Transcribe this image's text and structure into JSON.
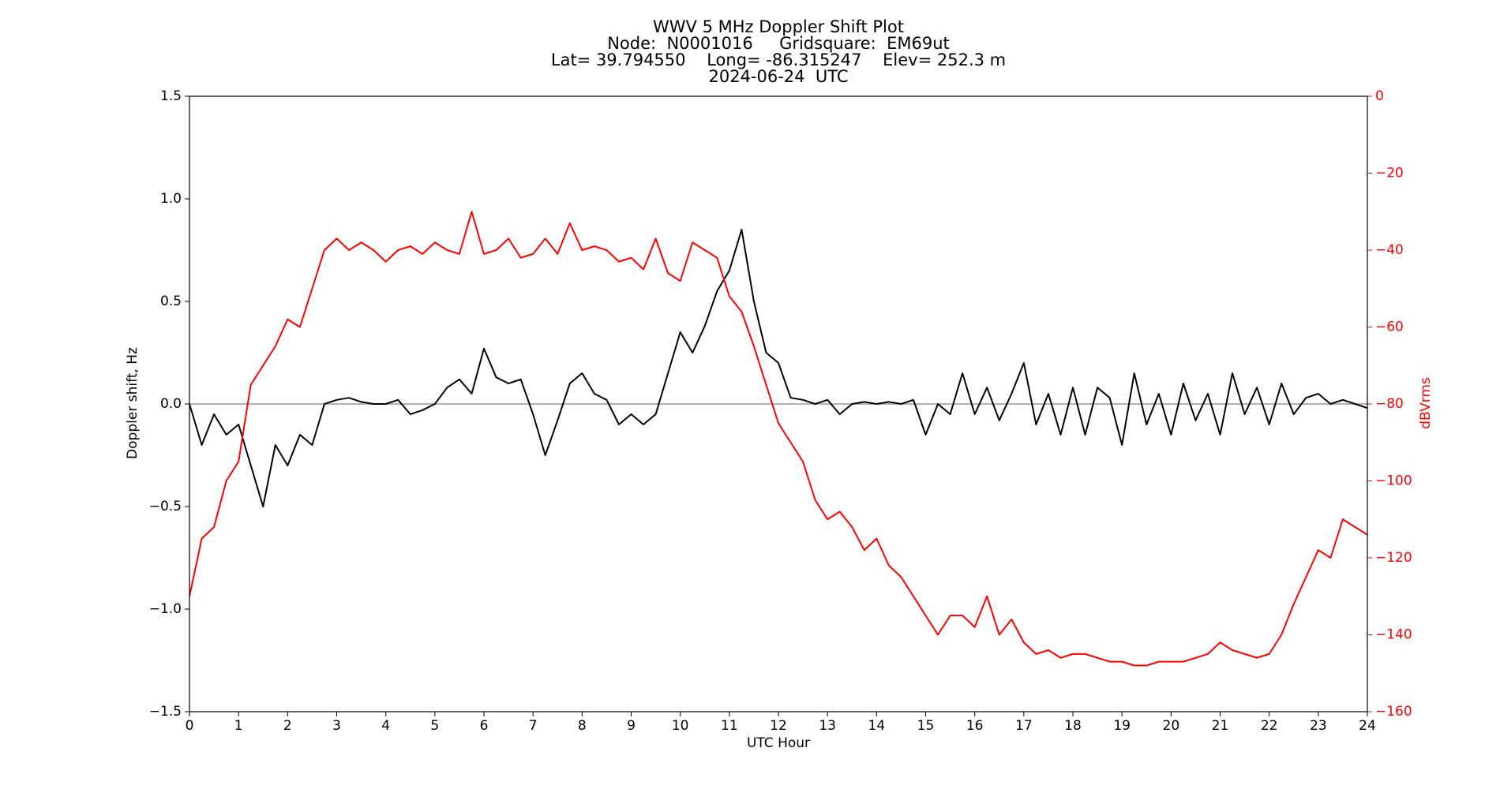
{
  "chart_data": {
    "type": "line",
    "title": [
      "WWV 5 MHz Doppler Shift Plot",
      "Node:  N0001016     Gridsquare:  EM69ut",
      "Lat= 39.794550    Long= -86.315247    Elev= 252.3 m",
      "2024-06-24  UTC"
    ],
    "x_label": "UTC Hour",
    "y_label": "Doppler shift, Hz",
    "y2_label": "dBVrms",
    "y2_color": "#ff0000",
    "x": [
      0,
      0.25,
      0.5,
      0.75,
      1,
      1.25,
      1.5,
      1.75,
      2,
      2.25,
      2.5,
      2.75,
      3,
      3.25,
      3.5,
      3.75,
      4,
      4.25,
      4.5,
      4.75,
      5,
      5.25,
      5.5,
      5.75,
      6,
      6.25,
      6.5,
      6.75,
      7,
      7.25,
      7.5,
      7.75,
      8,
      8.25,
      8.5,
      8.75,
      9,
      9.25,
      9.5,
      9.75,
      10,
      10.25,
      10.5,
      10.75,
      11,
      11.25,
      11.5,
      11.75,
      12,
      12.25,
      12.5,
      12.75,
      13,
      13.25,
      13.5,
      13.75,
      14,
      14.25,
      14.5,
      14.75,
      15,
      15.25,
      15.5,
      15.75,
      16,
      16.25,
      16.5,
      16.75,
      17,
      17.25,
      17.5,
      17.75,
      18,
      18.25,
      18.5,
      18.75,
      19,
      19.25,
      19.5,
      19.75,
      20,
      20.25,
      20.5,
      20.75,
      21,
      21.25,
      21.5,
      21.75,
      22,
      22.25,
      22.5,
      22.75,
      23,
      23.25,
      23.5,
      23.75,
      24
    ],
    "series": [
      {
        "color": "#000000",
        "values": [
          0,
          -0.2,
          -0.05,
          -0.15,
          -0.1,
          -0.3,
          -0.5,
          -0.2,
          -0.3,
          -0.15,
          -0.2,
          0,
          0.02,
          0.03,
          0.01,
          0,
          0,
          0.02,
          -0.05,
          -0.03,
          0,
          0.08,
          0.12,
          0.05,
          0.27,
          0.13,
          0.1,
          0.12,
          -0.05,
          -0.25,
          -0.08,
          0.1,
          0.15,
          0.05,
          0.02,
          -0.1,
          -0.05,
          -0.1,
          -0.05,
          0.15,
          0.35,
          0.25,
          0.38,
          0.55,
          0.65,
          0.85,
          0.5,
          0.25,
          0.2,
          0.03,
          0.02,
          0,
          0.02,
          -0.05,
          0,
          0.01,
          0,
          0.01,
          0,
          0.02,
          -0.15,
          0,
          -0.05,
          0.15,
          -0.05,
          0.08,
          -0.08,
          0.05,
          0.2,
          -0.1,
          0.05,
          -0.15,
          0.08,
          -0.15,
          0.08,
          0.03,
          -0.2,
          0.15,
          -0.1,
          0.05,
          -0.15,
          0.1,
          -0.08,
          0.05,
          -0.15,
          0.15,
          -0.05,
          0.08,
          -0.1,
          0.1,
          -0.05,
          0.03,
          0.05,
          0,
          0.02,
          0,
          -0.02
        ]
      },
      {
        "color": "#ff0000",
        "axis": "y2",
        "values": [
          -130,
          -115,
          -112,
          -100,
          -95,
          -75,
          -70,
          -65,
          -58,
          -60,
          -50,
          -40,
          -37,
          -40,
          -38,
          -40,
          -43,
          -40,
          -39,
          -41,
          -38,
          -40,
          -41,
          -30,
          -41,
          -40,
          -37,
          -42,
          -41,
          -37,
          -41,
          -33,
          -40,
          -39,
          -40,
          -43,
          -42,
          -45,
          -37,
          -46,
          -48,
          -38,
          -40,
          -42,
          -52,
          -56,
          -65,
          -75,
          -85,
          -90,
          -95,
          -105,
          -110,
          -108,
          -112,
          -118,
          -115,
          -122,
          -125,
          -130,
          -135,
          -140,
          -135,
          -135,
          -138,
          -130,
          -140,
          -136,
          -142,
          -145,
          -144,
          -146,
          -145,
          -145,
          -146,
          -147,
          -147,
          -148,
          -148,
          -147,
          -147,
          -147,
          -146,
          -145,
          -142,
          -144,
          -145,
          -146,
          -145,
          -140,
          -132,
          -125,
          -118,
          -120,
          -110,
          -112,
          -114
        ]
      }
    ],
    "xlim": [
      0,
      24
    ],
    "xticks": [
      0,
      1,
      2,
      3,
      4,
      5,
      6,
      7,
      8,
      9,
      10,
      11,
      12,
      13,
      14,
      15,
      16,
      17,
      18,
      19,
      20,
      21,
      22,
      23,
      24
    ],
    "ylim": [
      -1.5,
      1.5
    ],
    "yticks": [
      {
        "value": -1.5,
        "label": "−1.5"
      },
      {
        "value": -1,
        "label": "−1.0"
      },
      {
        "value": -0.5,
        "label": "−0.5"
      },
      {
        "value": 0,
        "label": "0.0"
      },
      {
        "value": 0.5,
        "label": "0.5"
      },
      {
        "value": 1,
        "label": "1.0"
      },
      {
        "value": 1.5,
        "label": "1.5"
      }
    ],
    "y2lim": [
      -160,
      0
    ],
    "y2ticks": [
      {
        "value": -160,
        "label": "−160"
      },
      {
        "value": -140,
        "label": "−140"
      },
      {
        "value": -120,
        "label": "−120"
      },
      {
        "value": -100,
        "label": "−100"
      },
      {
        "value": -80,
        "label": "−80"
      },
      {
        "value": -60,
        "label": "−60"
      },
      {
        "value": -40,
        "label": "−40"
      },
      {
        "value": -20,
        "label": "−20"
      },
      0
    ],
    "reference_line": 0,
    "reference_line_color": "#999999"
  }
}
